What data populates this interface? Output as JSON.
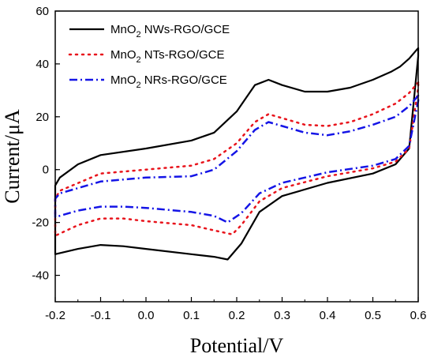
{
  "chart_data": {
    "type": "line",
    "xlabel": "Potential/V",
    "ylabel": "Current/μA",
    "xlim": [
      -0.2,
      0.6
    ],
    "ylim": [
      -50,
      60
    ],
    "xticks": [
      -0.2,
      -0.1,
      0.0,
      0.1,
      0.2,
      0.3,
      0.4,
      0.5,
      0.6
    ],
    "xtick_labels": [
      "-0.2",
      "-0.1",
      "0.0",
      "0.1",
      "0.2",
      "0.3",
      "0.4",
      "0.5",
      "0.6"
    ],
    "yticks": [
      -40,
      -20,
      0,
      20,
      40,
      60
    ],
    "ytick_labels": [
      "-40",
      "-20",
      "0",
      "20",
      "40",
      "60"
    ],
    "legend_position": "top-left",
    "grid": false,
    "series": [
      {
        "name": "MnO2 NWs-RGO/GCE",
        "name_main": "MnO",
        "name_sub": "2",
        "name_rest": " NWs-RGO/GCE",
        "color": "#000000",
        "style": "solid",
        "x": [
          0.6,
          0.58,
          0.56,
          0.54,
          0.5,
          0.45,
          0.4,
          0.35,
          0.3,
          0.27,
          0.24,
          0.2,
          0.15,
          0.1,
          0.0,
          -0.1,
          -0.15,
          -0.19,
          -0.2,
          -0.2,
          -0.15,
          -0.1,
          -0.05,
          0.0,
          0.1,
          0.15,
          0.18,
          0.21,
          0.25,
          0.3,
          0.4,
          0.5,
          0.55,
          0.58,
          0.6
        ],
        "y": [
          46,
          42,
          39,
          37,
          34,
          31,
          29.5,
          29.5,
          32,
          34,
          32,
          22,
          14,
          11,
          8,
          5.5,
          2,
          -3,
          -6,
          -32,
          -30,
          -28.5,
          -29,
          -30,
          -32,
          -33,
          -34,
          -28,
          -16,
          -10,
          -5,
          -1.5,
          2,
          8,
          43
        ]
      },
      {
        "name": "MnO2 NTs-RGO/GCE",
        "name_main": "MnO",
        "name_sub": "2",
        "name_rest": " NTs-RGO/GCE",
        "color": "#e8141c",
        "style": "dotted",
        "x": [
          0.6,
          0.58,
          0.55,
          0.5,
          0.45,
          0.4,
          0.35,
          0.3,
          0.27,
          0.24,
          0.2,
          0.15,
          0.1,
          0.0,
          -0.1,
          -0.19,
          -0.2,
          -0.2,
          -0.15,
          -0.1,
          -0.05,
          0.0,
          0.1,
          0.15,
          0.19,
          0.21,
          0.25,
          0.3,
          0.4,
          0.5,
          0.55,
          0.58,
          0.6
        ],
        "y": [
          33,
          29,
          25,
          21,
          18,
          16.5,
          17,
          19.5,
          21,
          18,
          10,
          4,
          1.5,
          0,
          -1.5,
          -8,
          -11,
          -25,
          -21,
          -18.5,
          -18.5,
          -19.5,
          -21,
          -23,
          -24.5,
          -21,
          -12,
          -7,
          -2.5,
          0.5,
          3,
          8,
          31
        ]
      },
      {
        "name": "MnO2 NRs-RGO/GCE",
        "name_main": "MnO",
        "name_sub": "2",
        "name_rest": " NRs-RGO/GCE",
        "color": "#1414e6",
        "style": "dashdot",
        "x": [
          0.6,
          0.58,
          0.55,
          0.5,
          0.45,
          0.4,
          0.35,
          0.3,
          0.27,
          0.24,
          0.2,
          0.15,
          0.1,
          0.0,
          -0.1,
          -0.19,
          -0.2,
          -0.2,
          -0.15,
          -0.1,
          -0.05,
          0.0,
          0.1,
          0.15,
          0.18,
          0.21,
          0.25,
          0.3,
          0.4,
          0.5,
          0.55,
          0.58,
          0.6
        ],
        "y": [
          28,
          24,
          20,
          17,
          14.5,
          13,
          14,
          16.5,
          18,
          15,
          7,
          0,
          -2.5,
          -3,
          -4.5,
          -9,
          -11,
          -18,
          -15.5,
          -14,
          -14,
          -14.5,
          -16,
          -17.5,
          -20,
          -16.5,
          -9,
          -5,
          -1,
          1.5,
          4,
          9,
          26
        ]
      }
    ]
  }
}
